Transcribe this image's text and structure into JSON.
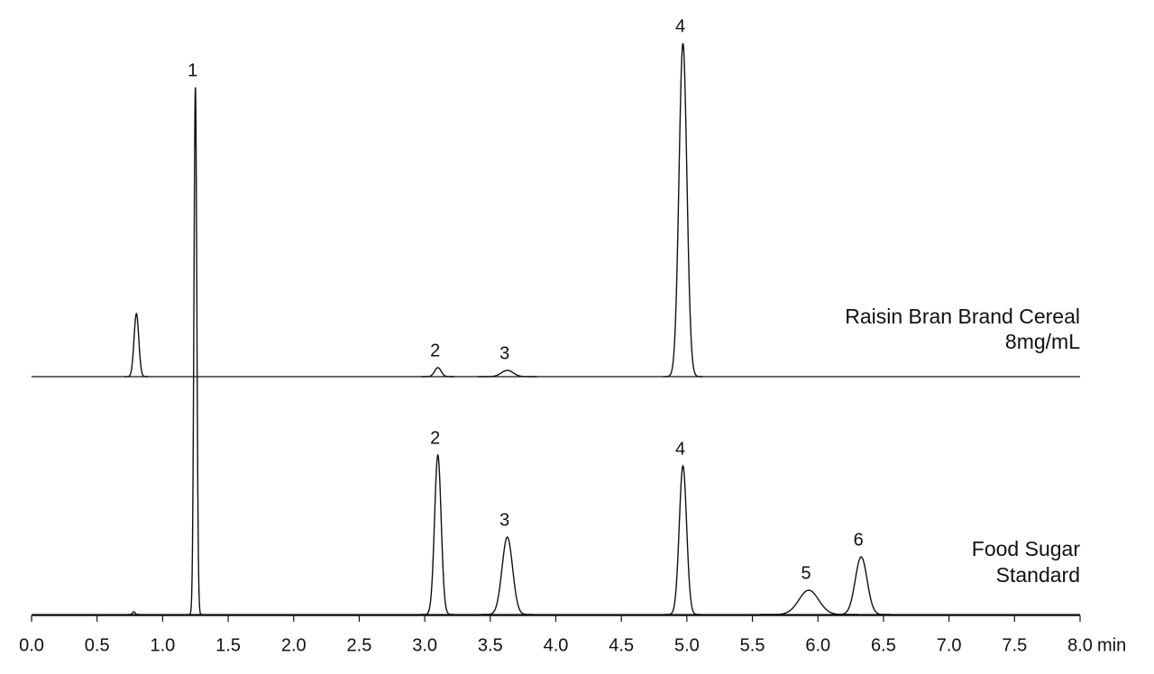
{
  "chart_data": {
    "type": "chromatogram",
    "x_label": "min",
    "xlim": [
      0,
      8
    ],
    "xticks": [
      {
        "value": 0,
        "label": "0.0"
      },
      0.5,
      {
        "value": 1,
        "label": "1.0"
      },
      1.5,
      {
        "value": 2,
        "label": "2.0"
      },
      2.5,
      {
        "value": 3,
        "label": "3.0"
      },
      3.5,
      {
        "value": 4,
        "label": "4.0"
      },
      4.5,
      {
        "value": 5,
        "label": "5.0"
      },
      5.5,
      {
        "value": 6,
        "label": "6.0"
      },
      6.5,
      {
        "value": 7,
        "label": "7.0"
      },
      7.5,
      {
        "value": 8,
        "label": "8.0"
      }
    ],
    "series": [
      {
        "name": [
          "Raisin Bran Brand Cereal",
          "8mg/mL"
        ],
        "color": "#111111",
        "x": [
          0.8,
          3.1,
          3.63,
          4.97
        ],
        "values": [
          70,
          10,
          7,
          370
        ],
        "widths": [
          0.018,
          0.025,
          0.045,
          0.03
        ],
        "peak_labels": [
          null,
          "2",
          "3",
          "4"
        ]
      },
      {
        "name": [
          "Food Sugar",
          "Standard"
        ],
        "color": "#111111",
        "x": [
          0.78,
          1.25,
          3.1,
          3.63,
          4.97,
          5.93,
          6.33
        ],
        "values": [
          3,
          585,
          177,
          86,
          165,
          27,
          64
        ],
        "widths": [
          0.01,
          0.011,
          0.025,
          0.04,
          0.028,
          0.075,
          0.045
        ],
        "peak_labels": [
          null,
          "1",
          "2",
          "3",
          "4",
          "5",
          "6"
        ]
      }
    ]
  }
}
